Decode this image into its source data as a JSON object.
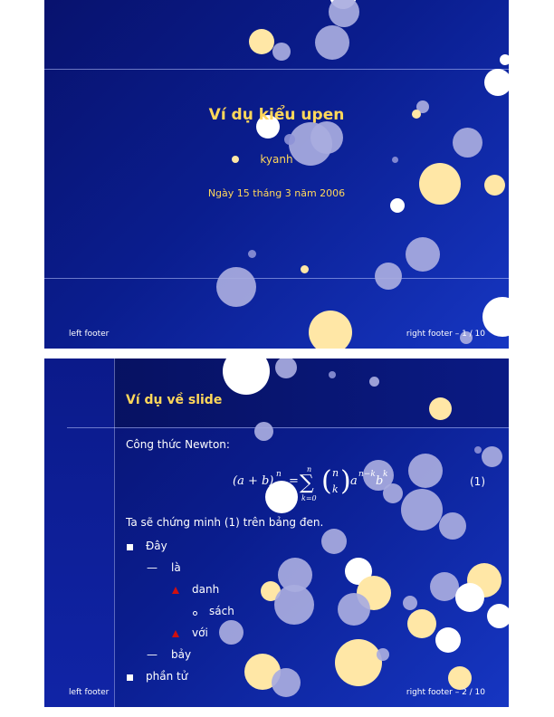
{
  "slide1": {
    "title": "Ví dụ kiểu upen",
    "author": "kyanh",
    "date": "Ngày 15 tháng 3 năm 2006",
    "footer_left": "left footer",
    "footer_right": "right footer – 1 / 10"
  },
  "slide2": {
    "title": "Ví dụ về slide",
    "formula_intro": "Công thức Newton:",
    "formula_label": "(1)",
    "proof_text": "Ta sẽ chứng minh (1) trên bảng đen.",
    "list": {
      "item1": "Đây",
      "item1_sub": "là",
      "item1_sub_sub1": "danh",
      "item1_sub_sub1_sub": "sách",
      "item1_sub_sub2": "với",
      "item1_sub2": "bảy",
      "item2": "phần tử"
    },
    "footer_left": "left footer",
    "footer_right": "right footer – 2 / 10"
  },
  "colors": {
    "title": "#ffd75a",
    "background": "#0a1d8e",
    "bullet_triangle": "#d01010"
  }
}
